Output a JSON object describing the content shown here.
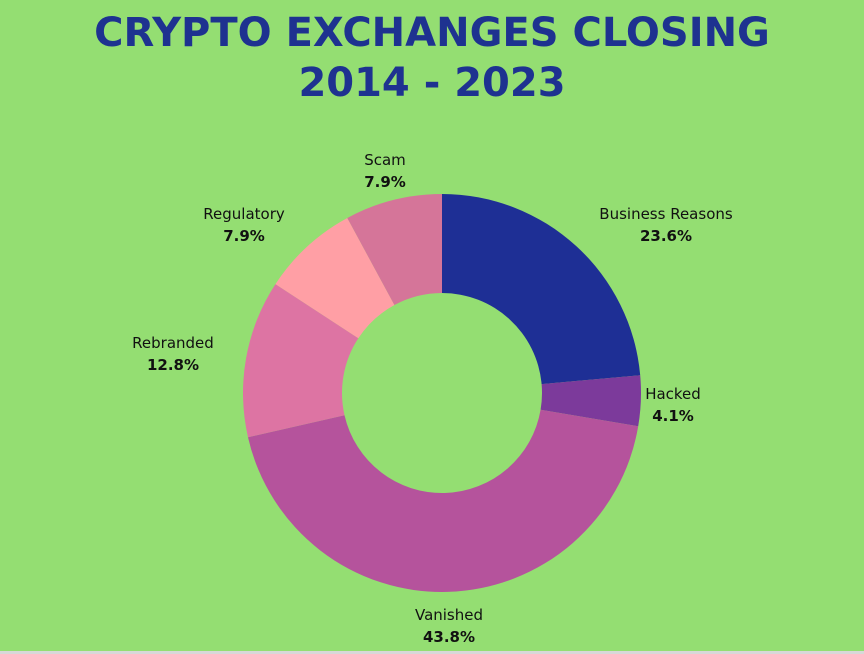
{
  "title_line1": "CRYPTO EXCHANGES CLOSING",
  "title_line2": "2014 - 2023",
  "colors": {
    "background": "#94de72",
    "title": "#1e3290"
  },
  "chart_data": {
    "type": "pie",
    "variant": "donut",
    "title": "CRYPTO EXCHANGES CLOSING 2014 - 2023",
    "slices": [
      {
        "label": "Business Reasons",
        "value": 23.6,
        "value_label": "23.6%",
        "color": "#1e2f95"
      },
      {
        "label": "Hacked",
        "value": 4.1,
        "value_label": "4.1%",
        "color": "#7c3a9b"
      },
      {
        "label": "Vanished",
        "value": 43.8,
        "value_label": "43.8%",
        "color": "#b5539c"
      },
      {
        "label": "Rebranded",
        "value": 12.8,
        "value_label": "12.8%",
        "color": "#dd74a3"
      },
      {
        "label": "Regulatory",
        "value": 7.9,
        "value_label": "7.9%",
        "color": "#ff9fa5"
      },
      {
        "label": "Scam",
        "value": 7.9,
        "value_label": "7.9%",
        "color": "#d57599"
      }
    ]
  }
}
